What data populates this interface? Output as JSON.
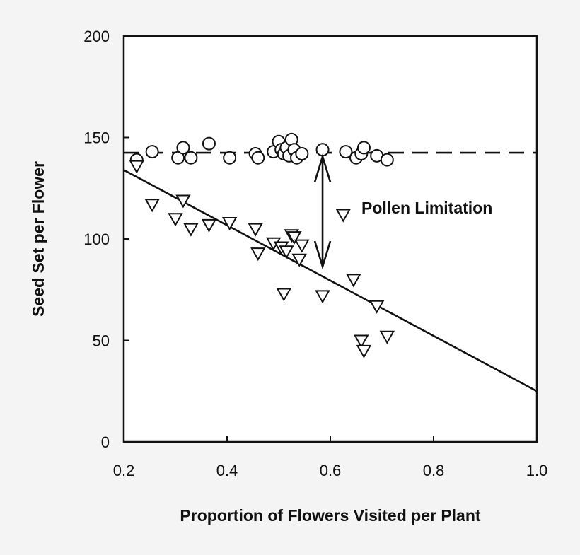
{
  "chart_data": {
    "type": "scatter",
    "xlabel": "Proportion of Flowers Visited per Plant",
    "ylabel": "Seed Set per Flower",
    "xlim": [
      0.2,
      1.0
    ],
    "ylim": [
      0,
      200
    ],
    "x_ticks": [
      "0.2",
      "0.4",
      "0.6",
      "0.8",
      "1.0"
    ],
    "y_ticks": [
      "0",
      "50",
      "100",
      "150",
      "200"
    ],
    "grid": false,
    "annotation": "Pollen Limitation",
    "pollen_limitation_arrow": {
      "x": 0.585,
      "y_from": 142,
      "y_to": 85
    },
    "series": [
      {
        "marker": "circle",
        "points": [
          [
            0.225,
            139
          ],
          [
            0.255,
            143
          ],
          [
            0.305,
            140
          ],
          [
            0.315,
            145
          ],
          [
            0.33,
            140
          ],
          [
            0.365,
            147
          ],
          [
            0.405,
            140
          ],
          [
            0.455,
            142
          ],
          [
            0.46,
            140
          ],
          [
            0.49,
            143
          ],
          [
            0.5,
            148
          ],
          [
            0.505,
            144
          ],
          [
            0.51,
            142
          ],
          [
            0.515,
            145
          ],
          [
            0.52,
            141
          ],
          [
            0.525,
            149
          ],
          [
            0.53,
            144
          ],
          [
            0.535,
            140
          ],
          [
            0.545,
            142
          ],
          [
            0.585,
            144
          ],
          [
            0.63,
            143
          ],
          [
            0.65,
            140
          ],
          [
            0.66,
            142
          ],
          [
            0.665,
            145
          ],
          [
            0.69,
            141
          ],
          [
            0.71,
            139
          ]
        ],
        "fit": {
          "style": "dashed",
          "x": [
            0.2,
            1.0
          ],
          "y": [
            142.5,
            142.5
          ]
        }
      },
      {
        "marker": "triangle-down",
        "points": [
          [
            0.225,
            136
          ],
          [
            0.255,
            117
          ],
          [
            0.3,
            110
          ],
          [
            0.315,
            119
          ],
          [
            0.33,
            105
          ],
          [
            0.365,
            107
          ],
          [
            0.405,
            108
          ],
          [
            0.455,
            105
          ],
          [
            0.46,
            93
          ],
          [
            0.49,
            98
          ],
          [
            0.505,
            96
          ],
          [
            0.51,
            73
          ],
          [
            0.515,
            94
          ],
          [
            0.525,
            102
          ],
          [
            0.53,
            101
          ],
          [
            0.54,
            90
          ],
          [
            0.545,
            97
          ],
          [
            0.585,
            72
          ],
          [
            0.625,
            112
          ],
          [
            0.645,
            80
          ],
          [
            0.66,
            50
          ],
          [
            0.665,
            45
          ],
          [
            0.69,
            67
          ],
          [
            0.71,
            52
          ]
        ],
        "fit": {
          "style": "solid",
          "x": [
            0.2,
            1.0
          ],
          "y": [
            134,
            25
          ]
        }
      }
    ]
  }
}
